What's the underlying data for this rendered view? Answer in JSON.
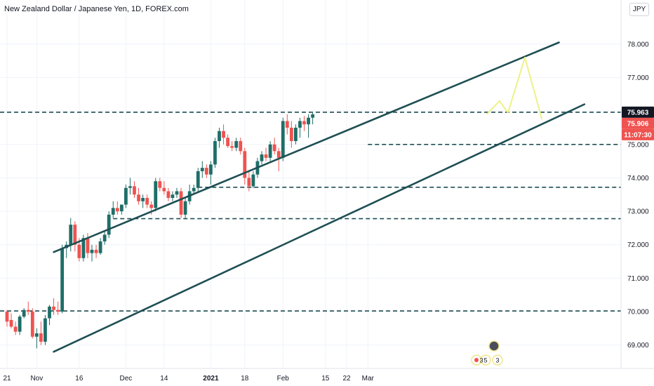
{
  "header": {
    "title": "New Zealand Dollar / Japanese Yen, 1D, FOREX.com",
    "currency": "JPY"
  },
  "chart_data": {
    "type": "candlestick",
    "symbol": "NZDJPY",
    "ylim": [
      68.3,
      78.9
    ],
    "y_ticks": [
      69,
      70,
      71,
      72,
      73,
      74,
      75,
      76,
      77,
      78
    ],
    "y_tick_labels": [
      "69.000",
      "70.000",
      "71.000",
      "72.000",
      "73.000",
      "74.000",
      "75.000",
      "76.000",
      "77.000",
      "78.000"
    ],
    "x_ticks": [
      {
        "label": "21",
        "i": 0,
        "bold": false
      },
      {
        "label": "Nov",
        "i": 7,
        "bold": false
      },
      {
        "label": "16",
        "i": 17,
        "bold": false
      },
      {
        "label": "Dec",
        "i": 28,
        "bold": false
      },
      {
        "label": "14",
        "i": 37,
        "bold": false
      },
      {
        "label": "2021",
        "i": 48,
        "bold": true
      },
      {
        "label": "18",
        "i": 56,
        "bold": false
      },
      {
        "label": "Feb",
        "i": 65,
        "bold": false
      },
      {
        "label": "15",
        "i": 75,
        "bold": false
      },
      {
        "label": "22",
        "i": 80,
        "bold": false
      },
      {
        "label": "Mar",
        "i": 85,
        "bold": false
      }
    ],
    "candles": [
      [
        70.0,
        70.05,
        69.55,
        69.7
      ],
      [
        69.75,
        69.95,
        69.5,
        69.55
      ],
      [
        69.55,
        69.7,
        69.3,
        69.4
      ],
      [
        69.4,
        69.9,
        69.3,
        69.85
      ],
      [
        69.85,
        70.1,
        69.8,
        70.05
      ],
      [
        70.05,
        70.3,
        69.9,
        70.0
      ],
      [
        70.0,
        70.1,
        69.2,
        69.25
      ],
      [
        69.25,
        69.5,
        68.9,
        69.35
      ],
      [
        69.35,
        69.7,
        69.0,
        69.1
      ],
      [
        69.1,
        69.9,
        69.0,
        69.8
      ],
      [
        69.8,
        70.2,
        69.6,
        70.15
      ],
      [
        70.15,
        70.4,
        69.9,
        70.05
      ],
      [
        70.05,
        70.3,
        69.9,
        70.0
      ],
      [
        70.0,
        72.0,
        69.95,
        71.9
      ],
      [
        71.9,
        72.1,
        71.6,
        72.0
      ],
      [
        72.0,
        72.8,
        71.8,
        72.6
      ],
      [
        72.6,
        72.7,
        71.8,
        72.0
      ],
      [
        72.0,
        72.2,
        71.5,
        71.6
      ],
      [
        71.6,
        72.3,
        71.5,
        72.2
      ],
      [
        72.2,
        72.35,
        71.6,
        71.75
      ],
      [
        71.75,
        72.0,
        71.5,
        71.85
      ],
      [
        71.85,
        72.0,
        71.6,
        71.75
      ],
      [
        71.75,
        72.2,
        71.7,
        72.1
      ],
      [
        72.1,
        72.4,
        72.0,
        72.3
      ],
      [
        72.3,
        73.0,
        72.2,
        72.9
      ],
      [
        72.9,
        73.3,
        72.8,
        73.1
      ],
      [
        73.1,
        73.3,
        72.9,
        73.0
      ],
      [
        73.0,
        73.2,
        72.9,
        73.2
      ],
      [
        73.2,
        73.8,
        73.1,
        73.7
      ],
      [
        73.7,
        74.0,
        73.5,
        73.75
      ],
      [
        73.75,
        73.9,
        73.4,
        73.5
      ],
      [
        73.5,
        73.7,
        73.2,
        73.3
      ],
      [
        73.3,
        73.5,
        73.1,
        73.4
      ],
      [
        73.4,
        73.5,
        73.1,
        73.2
      ],
      [
        73.2,
        73.3,
        72.9,
        73.1
      ],
      [
        73.1,
        74.0,
        73.0,
        73.9
      ],
      [
        73.9,
        74.0,
        73.6,
        73.7
      ],
      [
        73.7,
        73.9,
        73.5,
        73.6
      ],
      [
        73.6,
        73.7,
        73.3,
        73.4
      ],
      [
        73.4,
        73.6,
        73.3,
        73.5
      ],
      [
        73.5,
        73.7,
        73.4,
        73.6
      ],
      [
        73.6,
        73.7,
        72.8,
        72.9
      ],
      [
        72.9,
        73.4,
        72.8,
        73.3
      ],
      [
        73.3,
        73.8,
        73.2,
        73.6
      ],
      [
        73.6,
        73.8,
        73.5,
        73.7
      ],
      [
        73.7,
        74.3,
        73.6,
        74.2
      ],
      [
        74.2,
        74.5,
        74.0,
        74.3
      ],
      [
        74.3,
        74.4,
        74.0,
        74.1
      ],
      [
        74.1,
        74.5,
        73.8,
        74.4
      ],
      [
        74.4,
        75.2,
        74.3,
        75.1
      ],
      [
        75.1,
        75.5,
        74.9,
        75.4
      ],
      [
        75.4,
        75.6,
        75.0,
        75.2
      ],
      [
        75.2,
        75.3,
        74.9,
        74.95
      ],
      [
        74.95,
        75.1,
        74.8,
        74.9
      ],
      [
        74.9,
        75.2,
        74.8,
        75.1
      ],
      [
        75.1,
        75.2,
        74.7,
        74.8
      ],
      [
        74.8,
        74.9,
        73.8,
        74.0
      ],
      [
        74.0,
        74.2,
        73.6,
        73.75
      ],
      [
        73.75,
        74.2,
        73.7,
        74.1
      ],
      [
        74.1,
        74.6,
        74.0,
        74.5
      ],
      [
        74.5,
        74.8,
        74.4,
        74.7
      ],
      [
        74.7,
        74.9,
        74.5,
        74.6
      ],
      [
        74.6,
        75.1,
        74.5,
        75.0
      ],
      [
        75.0,
        75.2,
        74.7,
        74.8
      ],
      [
        74.8,
        74.9,
        74.2,
        74.6
      ],
      [
        74.6,
        75.8,
        74.5,
        75.7
      ],
      [
        75.7,
        75.9,
        75.3,
        75.5
      ],
      [
        75.5,
        75.7,
        74.9,
        75.1
      ],
      [
        75.1,
        75.6,
        75.0,
        75.5
      ],
      [
        75.5,
        75.8,
        75.2,
        75.7
      ],
      [
        75.7,
        75.85,
        75.4,
        75.6
      ],
      [
        75.6,
        75.9,
        75.2,
        75.8
      ],
      [
        75.8,
        75.95,
        75.6,
        75.9
      ]
    ],
    "candle_x": {
      "first": 10,
      "spacing": 6.05
    },
    "channel": {
      "upper": [
        [
          11,
          71.78
        ],
        [
          130,
          78.05
        ]
      ],
      "lower": [
        [
          11,
          68.8
        ],
        [
          136,
          76.2
        ]
      ]
    },
    "horizontal_levels": [
      {
        "value": 75.963,
        "x_start": 0,
        "label": "75.963",
        "label_color": "#131722"
      },
      {
        "value": 75.0,
        "x_start": 85
      },
      {
        "value": 73.72,
        "x_start": 45
      },
      {
        "value": 72.78,
        "x_start": 25
      },
      {
        "value": 70.02,
        "x_start": 0
      }
    ],
    "projection": [
      [
        113,
        75.9
      ],
      [
        116,
        76.3
      ],
      [
        118,
        75.95
      ],
      [
        122,
        77.6
      ],
      [
        126,
        75.75
      ]
    ],
    "price_labels": [
      {
        "label": "75.963",
        "value": 75.963,
        "color": "#131722"
      },
      {
        "label": "75.906",
        "value": 75.906,
        "color": "#ef5350"
      },
      {
        "label": "11:07:30",
        "value": 75.63,
        "color": "#ef5350"
      }
    ],
    "annotations": [
      "3",
      "5",
      "3"
    ]
  }
}
